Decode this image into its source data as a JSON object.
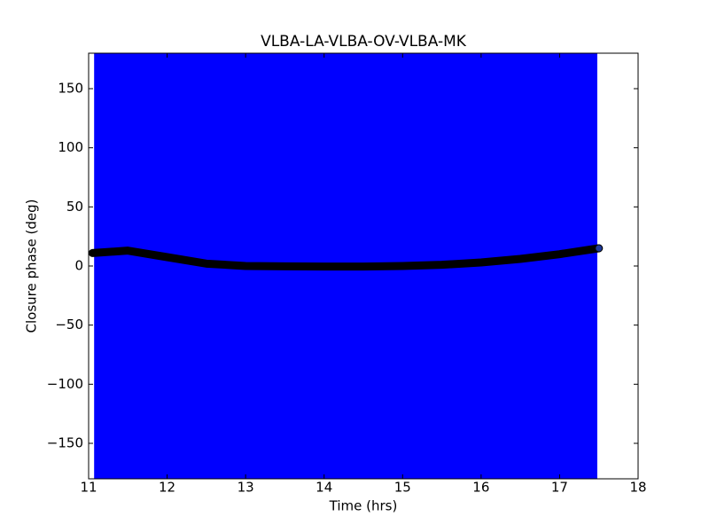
{
  "chart_data": {
    "type": "line",
    "title": "VLBA-LA-VLBA-OV-VLBA-MK",
    "x_label": "Time (hrs)",
    "y_label": "Closure phase (deg)",
    "x": [
      11.05,
      11.5,
      12,
      12.5,
      13,
      13.5,
      14,
      14.5,
      15,
      15.5,
      16,
      16.5,
      17,
      17.5
    ],
    "series": [
      {
        "color": "#000000",
        "values": [
          11,
          13,
          7.5,
          2,
          0,
          -0.3,
          -0.5,
          -0.5,
          0,
          1,
          3,
          6,
          10,
          15
        ]
      }
    ],
    "error_band": {
      "color": "#0000ff",
      "x": [
        11.07,
        17.48
      ],
      "y": [
        -180,
        180
      ]
    },
    "xlim": [
      11,
      18
    ],
    "ylim": [
      -180,
      180
    ],
    "xticks": [
      11,
      12,
      13,
      14,
      15,
      16,
      17,
      18
    ],
    "yticks": [
      {
        "value": -150,
        "label": "−150"
      },
      {
        "value": -100,
        "label": "−100"
      },
      {
        "value": -50,
        "label": "−50"
      },
      0,
      50,
      100,
      150
    ]
  }
}
